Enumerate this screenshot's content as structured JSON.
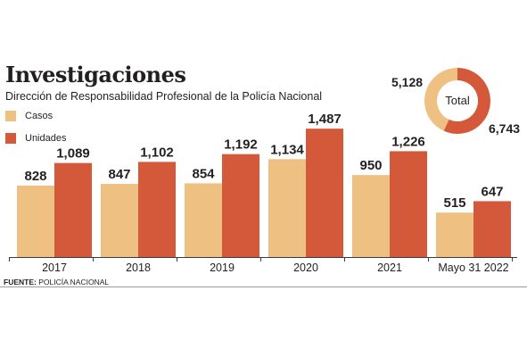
{
  "title": "Investigaciones",
  "subtitle": "Dirección de Responsabilidad Profesional de la Policía Nacional",
  "colors": {
    "casos": "#eec183",
    "unidades": "#d4583a",
    "axis": "#3a3a3a"
  },
  "chart_data": {
    "type": "bar",
    "categories": [
      "2017",
      "2018",
      "2019",
      "2020",
      "2021",
      "Mayo 31 2022"
    ],
    "series": [
      {
        "name": "Casos",
        "values": [
          828,
          847,
          854,
          1134,
          950,
          515
        ],
        "labels": [
          "828",
          "847",
          "854",
          "1,134",
          "950",
          "515"
        ]
      },
      {
        "name": "Unidades",
        "values": [
          1089,
          1102,
          1192,
          1487,
          1226,
          647
        ],
        "labels": [
          "1,089",
          "1,102",
          "1,192",
          "1,487",
          "1,226",
          "647"
        ]
      }
    ],
    "ylim": [
      0,
      1530
    ],
    "legend": "top-left"
  },
  "donut": {
    "center_label": "Total",
    "casos_label": "5,128",
    "casos_value": 5128,
    "unidades_label": "6,743",
    "unidades_value": 6743
  },
  "source": {
    "label": "FUENTE:",
    "text": "POLICÍA NACIONAL"
  }
}
